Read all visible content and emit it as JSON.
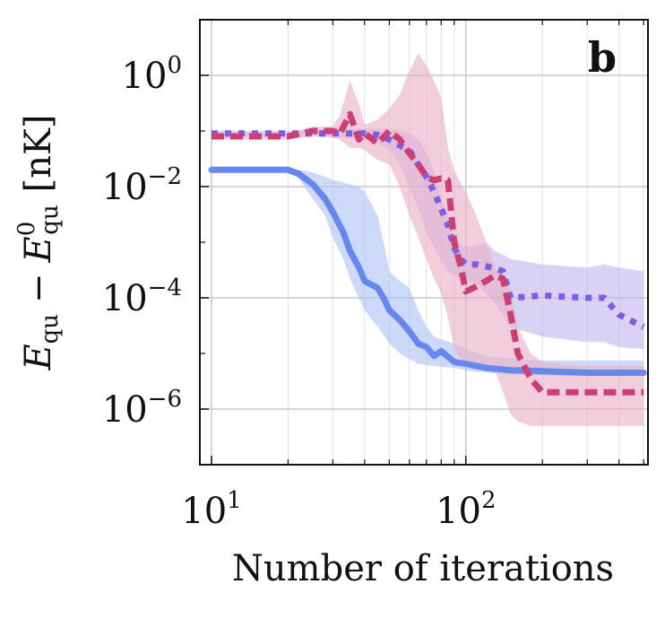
{
  "chart_data": {
    "type": "line",
    "title": "",
    "panel_label": "b",
    "xlabel": "Number of iterations",
    "ylabel": {
      "var": "E",
      "var_sub": "qu",
      "minus": "−",
      "ref": "E",
      "ref_sub": "qu",
      "ref_sup": "0",
      "unit": "[nK]"
    },
    "xscale": "log",
    "yscale": "log",
    "xlim": [
      9,
      520
    ],
    "ylim": [
      1e-07,
      10
    ],
    "grid": true,
    "x_ticks": [
      {
        "value": 10,
        "base": "10",
        "exp": "1"
      },
      {
        "value": 100,
        "base": "10",
        "exp": "2"
      }
    ],
    "y_ticks": [
      {
        "value": 1,
        "base": "10",
        "exp": "0"
      },
      {
        "value": 0.01,
        "base": "10",
        "exp": "−2"
      },
      {
        "value": 0.0001,
        "base": "10",
        "exp": "−4"
      },
      {
        "value": 1e-06,
        "base": "10",
        "exp": "−6"
      }
    ],
    "series": [
      {
        "name": "blue-solid",
        "style": "solid",
        "color": "#6687ec",
        "band_color": "#aec2f3",
        "x": [
          10,
          20,
          22,
          25,
          28,
          30,
          33,
          35,
          38,
          40,
          45,
          48,
          50,
          55,
          60,
          65,
          70,
          75,
          80,
          90,
          100,
          120,
          150,
          200,
          300,
          500
        ],
        "y": [
          0.02,
          0.02,
          0.017,
          0.011,
          0.006,
          0.0035,
          0.0015,
          0.0007,
          0.00035,
          0.0002,
          0.00015,
          9e-05,
          6e-05,
          4e-05,
          2.5e-05,
          1.5e-05,
          1.3e-05,
          9e-06,
          1.1e-05,
          7e-06,
          6.5e-06,
          5.5e-06,
          5e-06,
          4.8e-06,
          4.5e-06,
          4.5e-06
        ],
        "band_lower": [
          0.02,
          0.02,
          0.014,
          0.006,
          0.003,
          0.0012,
          0.0005,
          0.00022,
          0.0001,
          6e-05,
          3e-05,
          2e-05,
          1.5e-05,
          1e-05,
          8e-06,
          6.5e-06,
          6.2e-06,
          6e-06,
          5.8e-06,
          5.5e-06,
          5e-06,
          4.5e-06,
          4.2e-06,
          4e-06,
          4e-06,
          4e-06
        ],
        "band_upper": [
          0.02,
          0.02,
          0.02,
          0.018,
          0.015,
          0.013,
          0.012,
          0.011,
          0.01,
          0.008,
          0.003,
          0.0008,
          0.0003,
          0.0002,
          0.00015,
          6e-05,
          3e-05,
          2e-05,
          1.8e-05,
          1.5e-05,
          1.2e-05,
          9e-06,
          8e-06,
          7.5e-06,
          7.5e-06,
          7.5e-06
        ]
      },
      {
        "name": "purple-dotted",
        "style": "dotted",
        "color": "#7a5fe0",
        "band_color": "#c3b6ef",
        "x": [
          10,
          20,
          25,
          30,
          35,
          40,
          45,
          50,
          55,
          60,
          65,
          70,
          75,
          80,
          85,
          90,
          95,
          100,
          110,
          120,
          130,
          140,
          150,
          200,
          300,
          350,
          400,
          500
        ],
        "y": [
          0.09,
          0.09,
          0.09,
          0.09,
          0.09,
          0.09,
          0.085,
          0.07,
          0.055,
          0.045,
          0.025,
          0.015,
          0.008,
          0.004,
          0.002,
          0.0008,
          0.0005,
          0.0004,
          0.0004,
          0.00037,
          0.00034,
          0.0003,
          0.0001,
          0.00011,
          0.0001,
          0.0001,
          5e-05,
          3e-05
        ],
        "band_lower": [
          0.08,
          0.08,
          0.08,
          0.08,
          0.075,
          0.07,
          0.06,
          0.045,
          0.025,
          0.01,
          0.004,
          0.0015,
          0.0008,
          0.00045,
          0.0003,
          0.00025,
          0.00022,
          0.0002,
          0.00018,
          0.00012,
          8e-05,
          5e-05,
          3e-05,
          2e-05,
          1.6e-05,
          1.6e-05,
          1.3e-05,
          1.2e-05
        ],
        "band_upper": [
          0.1,
          0.1,
          0.1,
          0.11,
          0.11,
          0.11,
          0.11,
          0.11,
          0.1,
          0.09,
          0.07,
          0.04,
          0.02,
          0.006,
          0.003,
          0.0012,
          0.0009,
          0.0008,
          0.0009,
          0.001,
          0.0007,
          0.0006,
          0.0005,
          0.0004,
          0.00035,
          0.0004,
          0.00035,
          0.0003
        ]
      },
      {
        "name": "crimson-dashed",
        "style": "dashed",
        "color": "#cc3f73",
        "band_color": "#eab0c6",
        "x": [
          10,
          20,
          25,
          30,
          32,
          35,
          38,
          40,
          45,
          50,
          55,
          60,
          65,
          70,
          75,
          80,
          85,
          90,
          95,
          100,
          110,
          120,
          130,
          140,
          150,
          160,
          180,
          200,
          300,
          500
        ],
        "y": [
          0.08,
          0.08,
          0.1,
          0.1,
          0.09,
          0.2,
          0.07,
          0.09,
          0.06,
          0.1,
          0.07,
          0.04,
          0.025,
          0.015,
          0.013,
          0.014,
          0.013,
          0.001,
          0.0004,
          0.00013,
          0.00016,
          0.0002,
          0.00025,
          0.00022,
          5e-05,
          1e-05,
          3.5e-06,
          2e-06,
          2e-06,
          2e-06
        ],
        "band_lower": [
          0.07,
          0.07,
          0.08,
          0.075,
          0.07,
          0.05,
          0.05,
          0.045,
          0.03,
          0.025,
          0.01,
          0.003,
          0.0012,
          0.0005,
          0.00022,
          0.00012,
          4.5e-05,
          1.2e-05,
          8e-06,
          7e-06,
          6e-06,
          5.5e-06,
          5e-06,
          2e-06,
          8e-07,
          6e-07,
          5e-07,
          5e-07,
          5e-07,
          5e-07
        ],
        "band_upper": [
          0.09,
          0.09,
          0.12,
          0.12,
          0.2,
          0.8,
          0.3,
          0.13,
          0.16,
          0.25,
          0.45,
          1.2,
          2.5,
          1.5,
          0.8,
          0.4,
          0.05,
          0.02,
          0.012,
          0.008,
          0.003,
          0.001,
          0.00035,
          0.0003,
          0.00015,
          3e-05,
          1e-05,
          7e-06,
          6e-06,
          6e-06
        ]
      }
    ]
  }
}
